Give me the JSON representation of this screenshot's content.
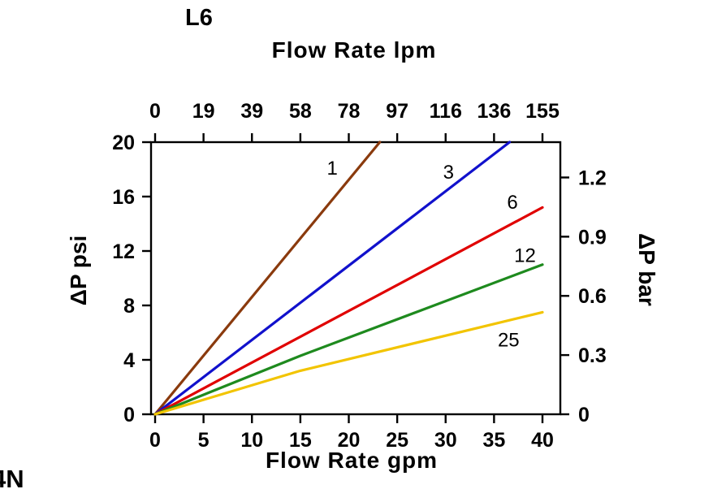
{
  "page": {
    "corner_text": "4N"
  },
  "chart_data": {
    "type": "line",
    "title": "L6",
    "xlim": [
      0,
      40
    ],
    "ylim": [
      0,
      20
    ],
    "grid": false,
    "axes": {
      "top": {
        "label": "Flow Rate lpm",
        "ticks": [
          0,
          19,
          39,
          58,
          78,
          97,
          116,
          136,
          155
        ]
      },
      "bottom": {
        "label": "Flow Rate gpm",
        "ticks": [
          0,
          5,
          10,
          15,
          20,
          25,
          30,
          35,
          40
        ]
      },
      "left": {
        "label": "ΔP psi",
        "ticks": [
          0,
          4,
          8,
          12,
          16,
          20
        ],
        "lim": [
          0,
          20
        ]
      },
      "right": {
        "label": "ΔP bar",
        "ticks": [
          0,
          0.3,
          0.6,
          0.9,
          1.2
        ],
        "lim": [
          0,
          1.379
        ]
      }
    },
    "series": [
      {
        "name": "1",
        "color": "#8A3A0D",
        "points": [
          [
            0,
            0
          ],
          [
            23.2,
            20
          ]
        ],
        "label_at": [
          18.3,
          17.6
        ]
      },
      {
        "name": "3",
        "color": "#1111CC",
        "points": [
          [
            0,
            0
          ],
          [
            36.6,
            20
          ]
        ],
        "label_at": [
          30.3,
          17.3
        ]
      },
      {
        "name": "6",
        "color": "#E00000",
        "points": [
          [
            0,
            0
          ],
          [
            40,
            15.2
          ]
        ],
        "label_at": [
          36.9,
          15.1
        ]
      },
      {
        "name": "12",
        "color": "#1E8A1E",
        "points": [
          [
            0,
            0
          ],
          [
            15,
            4.3
          ],
          [
            40,
            11.0
          ]
        ],
        "label_at": [
          38.2,
          11.2
        ]
      },
      {
        "name": "25",
        "color": "#F2C400",
        "points": [
          [
            0,
            0
          ],
          [
            15,
            3.2
          ],
          [
            40,
            7.5
          ]
        ],
        "label_at": [
          36.5,
          5.0
        ]
      }
    ]
  }
}
